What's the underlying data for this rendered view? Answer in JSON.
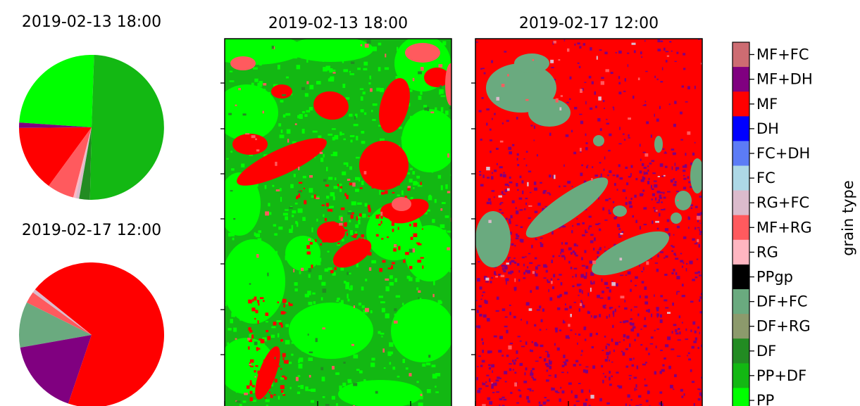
{
  "chart_data": [
    {
      "type": "pie",
      "title": "2019-02-13 18:00",
      "slices": [
        {
          "label": "PP",
          "value": 24.5
        },
        {
          "label": "MF+DH",
          "value": 1.2
        },
        {
          "label": "MF",
          "value": 14.8
        },
        {
          "label": "MF+RG",
          "value": 6.0
        },
        {
          "label": "RG",
          "value": 0.5
        },
        {
          "label": "RG+FC",
          "value": 0.8
        },
        {
          "label": "DF",
          "value": 2.4
        },
        {
          "label": "PP+DF",
          "value": 49.8
        }
      ]
    },
    {
      "type": "pie",
      "title": "2019-02-17 12:00",
      "slices": [
        {
          "label": "MF+RG",
          "value": 2.6
        },
        {
          "label": "DF+FC",
          "value": 10.2
        },
        {
          "label": "MF+DH",
          "value": 17.0
        },
        {
          "label": "MF",
          "value": 69.4
        },
        {
          "label": "RG+FC",
          "value": 0.8
        }
      ]
    },
    {
      "type": "heatmap",
      "title": "2019-02-13 18:00",
      "dominant": "PP+DF",
      "present": [
        "PP+DF",
        "PP",
        "MF",
        "MF+RG",
        "DF"
      ]
    },
    {
      "type": "heatmap",
      "title": "2019-02-17 12:00",
      "dominant": "MF",
      "present": [
        "MF",
        "MF+DH",
        "DF+FC",
        "MF+RG",
        "RG+FC"
      ]
    }
  ],
  "colorbar": {
    "label": "grain type",
    "classes": [
      {
        "name": "MF+FC",
        "color": "#cd6c72"
      },
      {
        "name": "MF+DH",
        "color": "#800080"
      },
      {
        "name": "MF",
        "color": "#ff0000"
      },
      {
        "name": "DH",
        "color": "#0000ff"
      },
      {
        "name": "FC+DH",
        "color": "#5c7cf6"
      },
      {
        "name": "FC",
        "color": "#add8e6"
      },
      {
        "name": "RG+FC",
        "color": "#dbbbcc"
      },
      {
        "name": "MF+RG",
        "color": "#ff5a5e"
      },
      {
        "name": "RG",
        "color": "#ffb6c1"
      },
      {
        "name": "PPgp",
        "color": "#000000"
      },
      {
        "name": "DF+FC",
        "color": "#6aaa7f"
      },
      {
        "name": "DF+RG",
        "color": "#8c9a6c"
      },
      {
        "name": "DF",
        "color": "#228b22"
      },
      {
        "name": "PP+DF",
        "color": "#13b813"
      },
      {
        "name": "PP",
        "color": "#00ff00"
      }
    ]
  }
}
